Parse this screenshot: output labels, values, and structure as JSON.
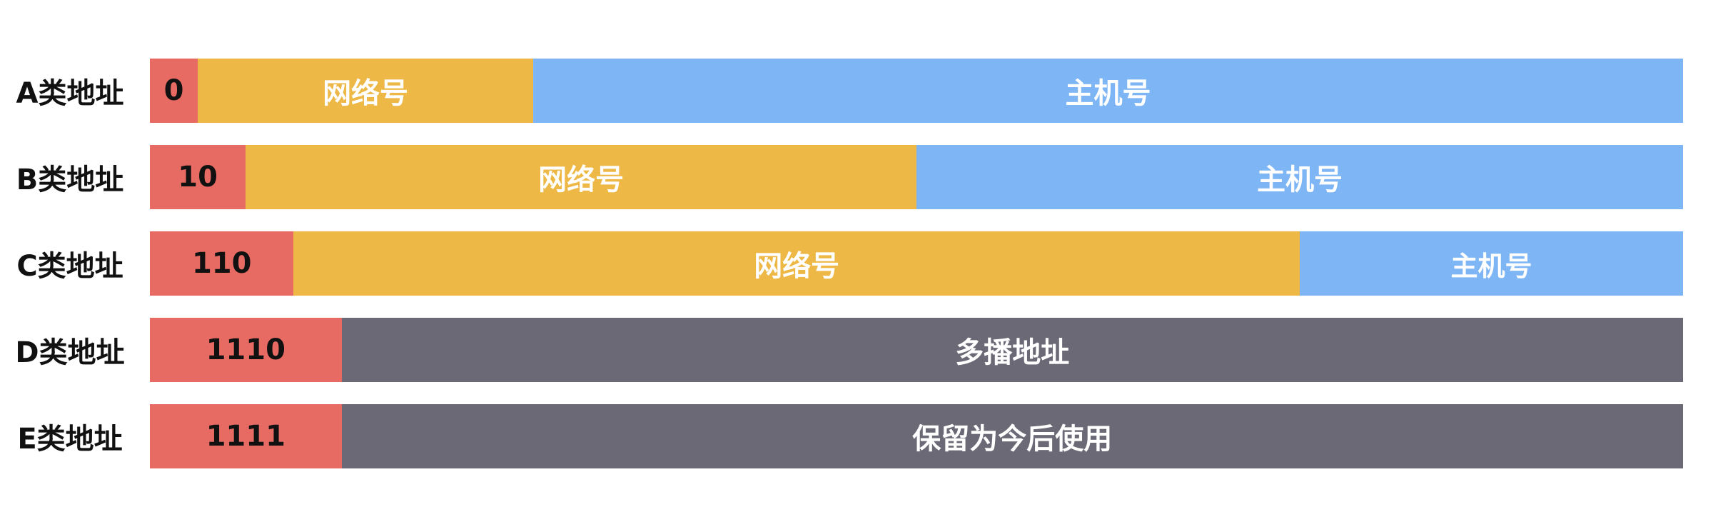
{
  "colors": {
    "prefix": "#E76A63",
    "network": "#EDB846",
    "host": "#7EB6F5",
    "special": "#6C6976"
  },
  "rows": [
    {
      "label": "A类地址",
      "segments": [
        {
          "kind": "prefix",
          "text": "0",
          "bits": 1
        },
        {
          "kind": "network",
          "text": "网络号",
          "bits": 7
        },
        {
          "kind": "host",
          "text": "主机号",
          "bits": 24
        }
      ]
    },
    {
      "label": "B类地址",
      "segments": [
        {
          "kind": "prefix",
          "text": "10",
          "bits": 2
        },
        {
          "kind": "network",
          "text": "网络号",
          "bits": 14
        },
        {
          "kind": "host",
          "text": "主机号",
          "bits": 16
        }
      ]
    },
    {
      "label": "C类地址",
      "segments": [
        {
          "kind": "prefix",
          "text": "110",
          "bits": 3
        },
        {
          "kind": "network",
          "text": "网络号",
          "bits": 21
        },
        {
          "kind": "host",
          "text": "主机号",
          "bits": 8
        }
      ]
    },
    {
      "label": "D类地址",
      "segments": [
        {
          "kind": "prefix",
          "text": "1110",
          "bits": 4
        },
        {
          "kind": "special",
          "text": "多播地址",
          "bits": 28
        }
      ]
    },
    {
      "label": "E类地址",
      "segments": [
        {
          "kind": "prefix",
          "text": "1111",
          "bits": 4
        },
        {
          "kind": "special",
          "text": "保留为今后使用",
          "bits": 28
        }
      ]
    }
  ]
}
